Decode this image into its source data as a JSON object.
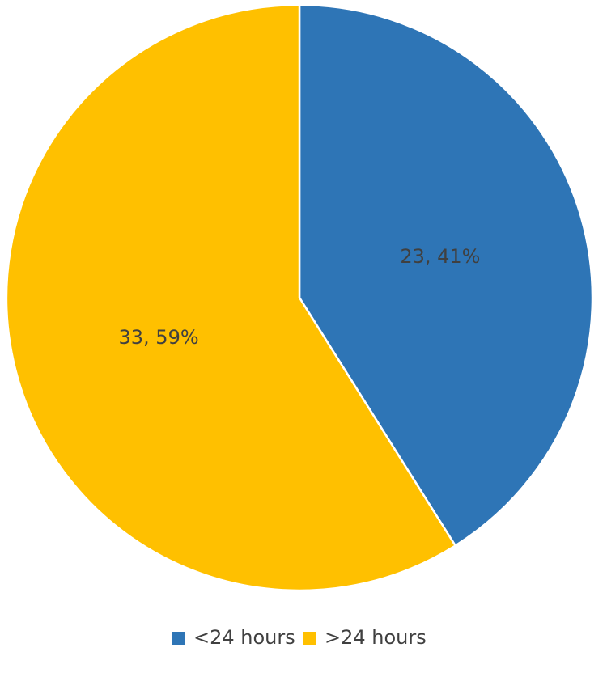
{
  "chart_data": {
    "type": "pie",
    "categories": [
      "<24 hours",
      ">24 hours"
    ],
    "values": [
      23,
      33
    ],
    "value_labels": [
      "23, 41%",
      "33, 59%"
    ],
    "colors": [
      "#2e75b6",
      "#ffc000"
    ],
    "legend": "bottom"
  }
}
